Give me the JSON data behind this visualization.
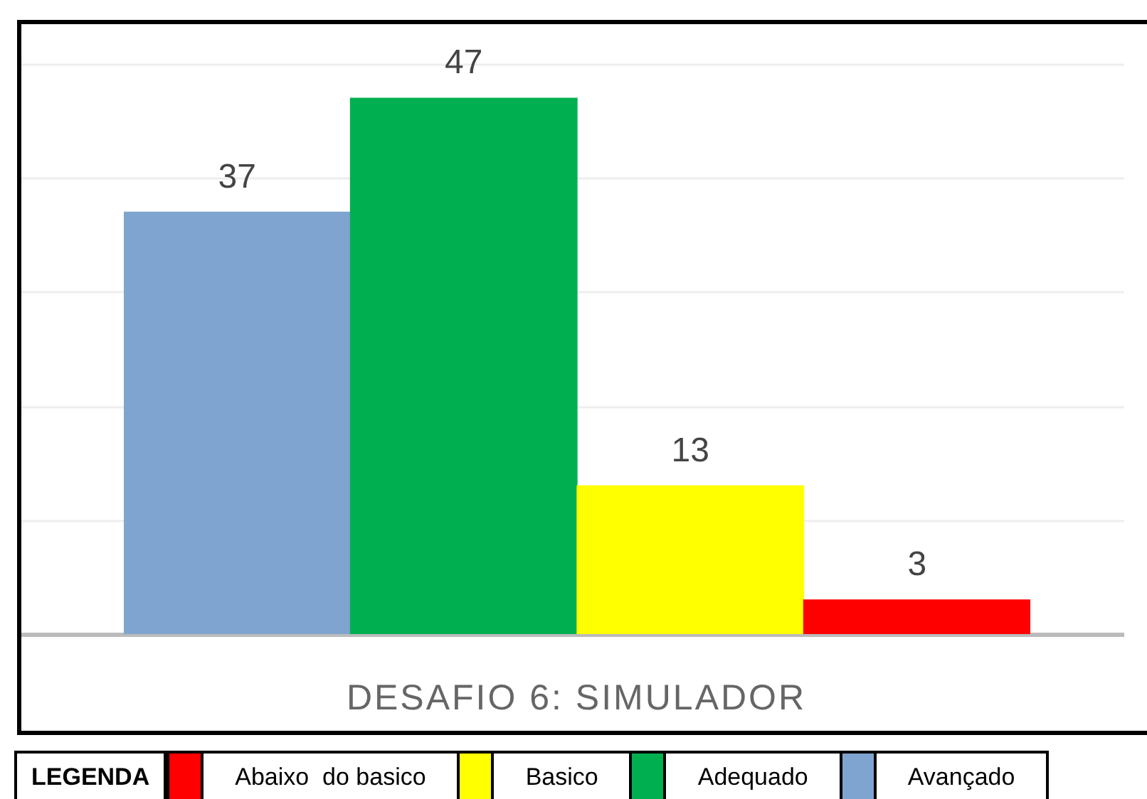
{
  "chart_data": {
    "type": "bar",
    "title": "DESAFIO 6: SIMULADOR",
    "legend_title": "LEGENDA",
    "stacked": true,
    "categories": [
      null,
      null,
      null,
      null
    ],
    "series": [
      {
        "name": "Abaixo  do basico",
        "color": "#ff0000",
        "values": [
          null,
          null,
          null,
          3
        ]
      },
      {
        "name": "Basico",
        "color": "#ffff00",
        "values": [
          null,
          null,
          13,
          null
        ]
      },
      {
        "name": "Adequado",
        "color": "#00b050",
        "values": [
          null,
          47,
          null,
          null
        ]
      },
      {
        "name": "Avançado",
        "color": "#7fa4cf",
        "values": [
          37,
          null,
          null,
          null
        ]
      }
    ],
    "tick_labels": false,
    "grid": "y",
    "legend": "bottom",
    "data_labels": true
  }
}
